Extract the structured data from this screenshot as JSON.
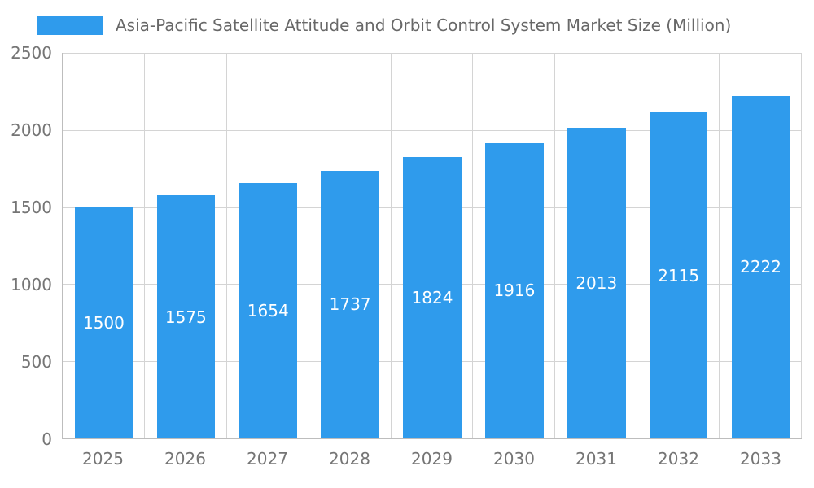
{
  "chart_data": {
    "type": "bar",
    "title": "Asia-Pacific Satellite Attitude and Orbit Control System Market Size (Million)",
    "categories": [
      "2025",
      "2026",
      "2027",
      "2028",
      "2029",
      "2030",
      "2031",
      "2032",
      "2033"
    ],
    "values": [
      1500,
      1575,
      1654,
      1737,
      1824,
      1916,
      2013,
      2115,
      2222
    ],
    "value_labels": [
      "1500",
      "1575",
      "1654",
      "1737",
      "1824",
      "1916",
      "2013",
      "2115",
      "2222"
    ],
    "xlabel": "",
    "ylabel": "",
    "ylim": [
      0,
      2500
    ],
    "yticks": [
      0,
      500,
      1000,
      1500,
      2000,
      2500
    ],
    "grid": true,
    "legend_position": "top-left",
    "colors": {
      "bar": "#2F9BEC",
      "bar_value_text": "#ffffff",
      "axis_text": "#757575",
      "title_text": "#686868",
      "gridline": "#d4d4d4",
      "axis_line": "#bdbdbd",
      "background": "#ffffff"
    }
  }
}
